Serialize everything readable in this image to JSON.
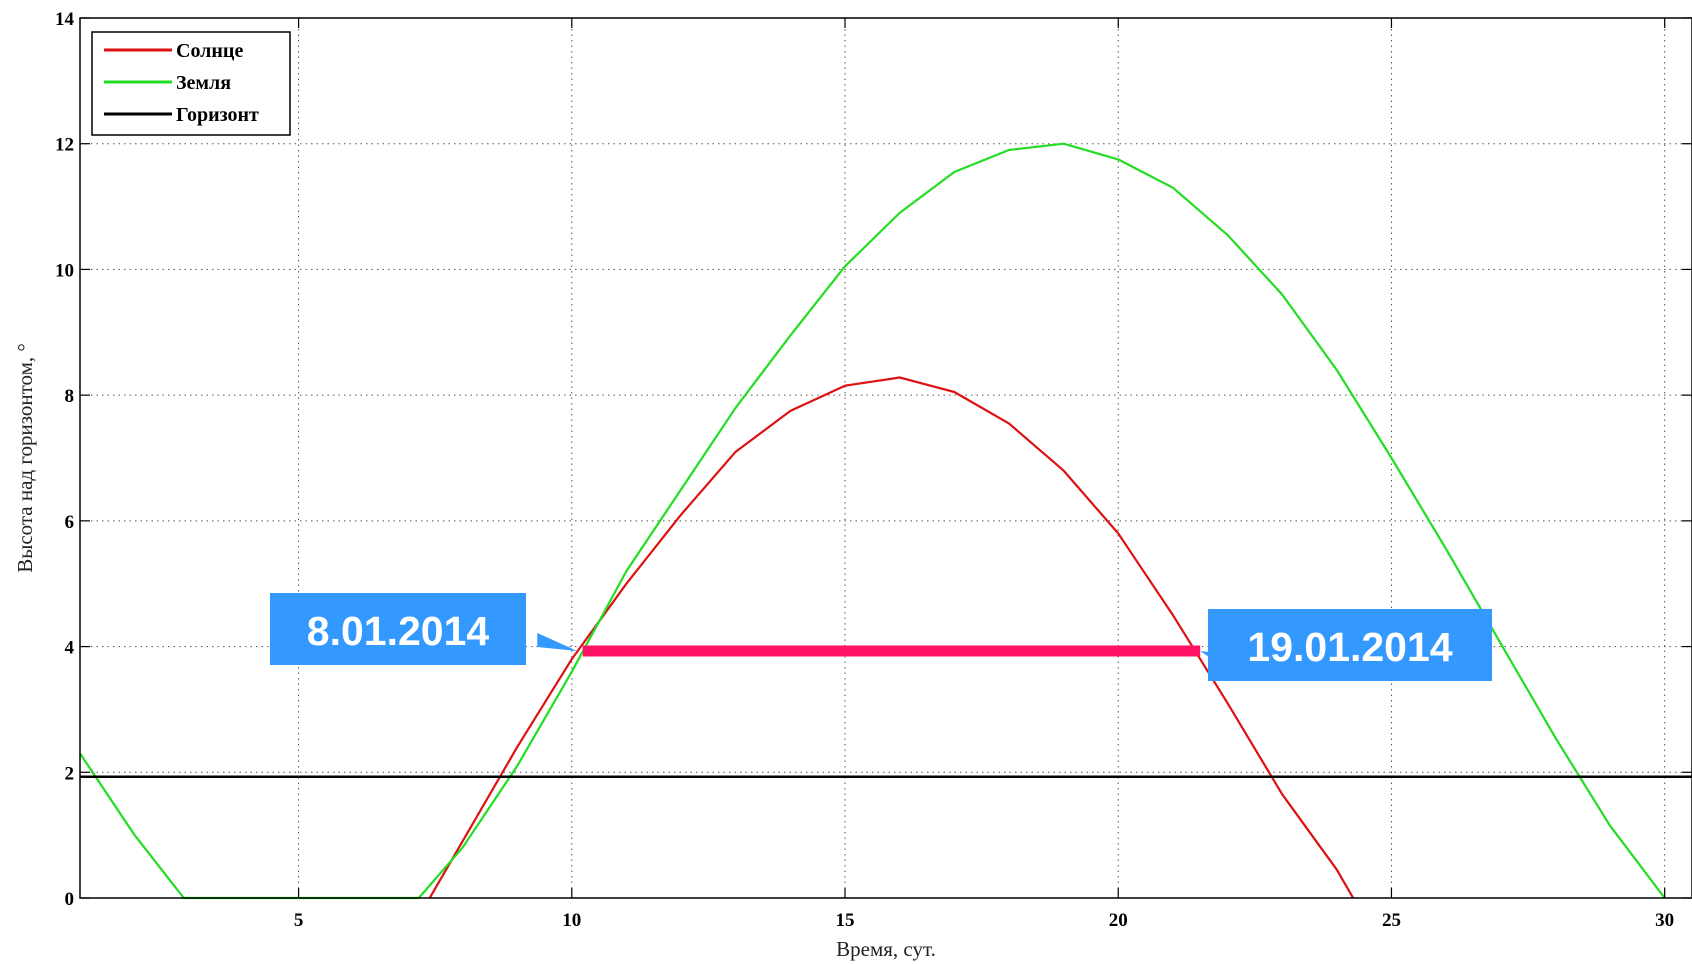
{
  "chart_data": {
    "type": "line",
    "title": "",
    "xlabel": "Время, сут.",
    "ylabel": "Высота над горизонтом, °",
    "xlim": [
      1,
      30.5
    ],
    "ylim": [
      0,
      14
    ],
    "xticks": [
      5,
      10,
      15,
      20,
      25,
      30
    ],
    "yticks": [
      0,
      2,
      4,
      6,
      8,
      10,
      12,
      14
    ],
    "grid": true,
    "legend_position": "top-left",
    "series": [
      {
        "name": "Солнце",
        "color": "#dd1111",
        "x": [
          7.4,
          8,
          9,
          10,
          11,
          12,
          13,
          14,
          15,
          16,
          17,
          18,
          19,
          20,
          21,
          22,
          23,
          24,
          24.3
        ],
        "y": [
          0,
          0.9,
          2.4,
          3.8,
          5.0,
          6.1,
          7.1,
          7.75,
          8.15,
          8.28,
          8.05,
          7.55,
          6.8,
          5.8,
          4.5,
          3.1,
          1.65,
          0.45,
          0
        ]
      },
      {
        "name": "Земля",
        "color": "#22dd22",
        "x": [
          1,
          2,
          2.9,
          7.2,
          8,
          9,
          10,
          11,
          12,
          13,
          14,
          15,
          16,
          17,
          18,
          19,
          20,
          21,
          22,
          23,
          24,
          25,
          26,
          27,
          28,
          29,
          30
        ],
        "y": [
          2.3,
          1.0,
          0,
          0,
          0.8,
          2.1,
          3.6,
          5.2,
          6.5,
          7.8,
          8.95,
          10.05,
          10.9,
          11.55,
          11.9,
          12.0,
          11.75,
          11.3,
          10.55,
          9.6,
          8.4,
          7.0,
          5.55,
          4.05,
          2.55,
          1.15,
          0
        ]
      },
      {
        "name": "Горизонт",
        "color": "#000000",
        "x": [
          1,
          30.5
        ],
        "y": [
          1.93,
          1.93
        ]
      }
    ],
    "annotations": [
      {
        "type": "bar",
        "x_start": 10.2,
        "x_end": 21.5,
        "y": 3.93,
        "color": "#ff1166"
      },
      {
        "type": "callout",
        "text": "8.01.2014",
        "x": 10.1,
        "y": 3.93
      },
      {
        "type": "callout",
        "text": "19.01.2014",
        "x": 21.5,
        "y": 3.93
      }
    ]
  },
  "colors": {
    "callout_bg": "#3399ff",
    "grid": "#555555"
  }
}
